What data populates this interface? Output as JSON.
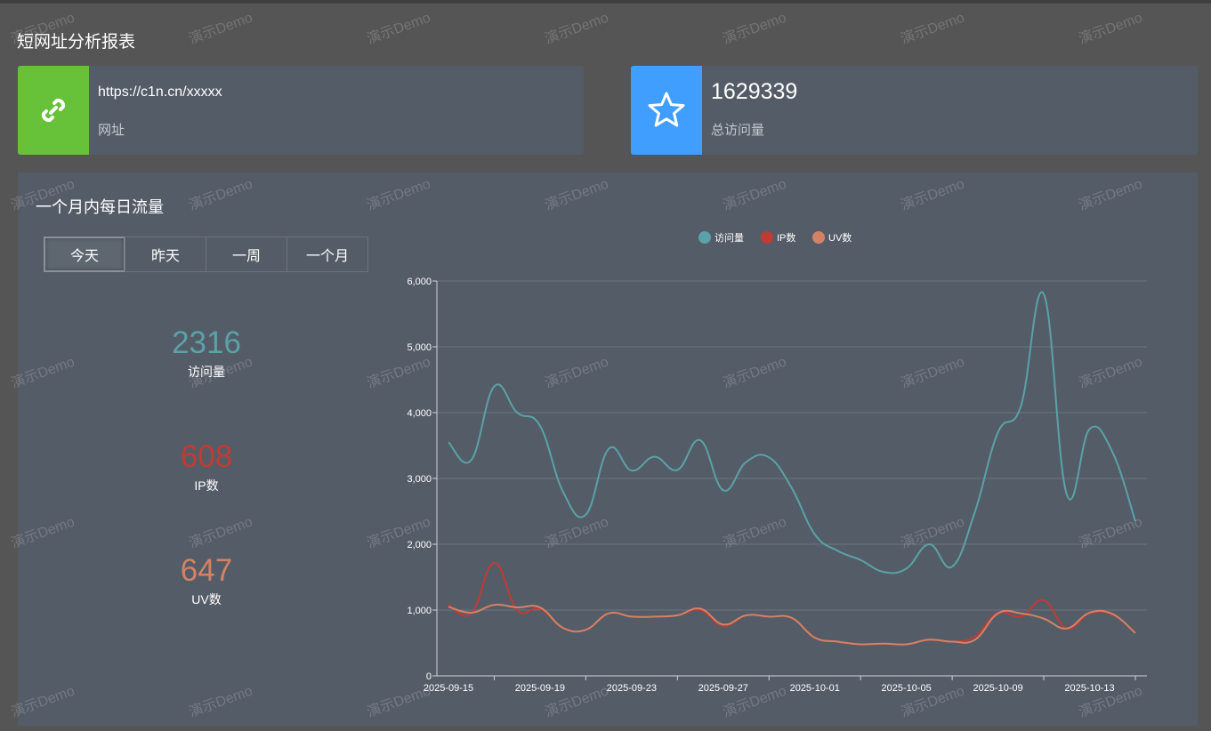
{
  "page": {
    "title": "短网址分析报表"
  },
  "url_card": {
    "value": "https://c1n.cn/xxxxx",
    "label": "网址",
    "icon": "link-icon",
    "color": "#67c23a"
  },
  "total_card": {
    "value": "1629339",
    "label": "总访问量",
    "icon": "star-icon",
    "color": "#409eff"
  },
  "panel": {
    "title": "一个月内每日流量",
    "buttons": [
      "今天",
      "昨天",
      "一周",
      "一个月"
    ],
    "active_button": "今天"
  },
  "stats": [
    {
      "value": "2316",
      "label": "访问量",
      "color": "#5aa2a8"
    },
    {
      "value": "608",
      "label": "IP数",
      "color": "#c13b35"
    },
    {
      "value": "647",
      "label": "UV数",
      "color": "#d48265"
    }
  ],
  "watermark_text": "演示Demo",
  "chart_data": {
    "type": "line",
    "title": "",
    "xlabel": "",
    "ylabel": "",
    "ylim": [
      0,
      6000
    ],
    "y_ticks": [
      "0",
      "1,000",
      "2,000",
      "3,000",
      "4,000",
      "5,000",
      "6,000"
    ],
    "y_tick_values": [
      0,
      1000,
      2000,
      3000,
      4000,
      5000,
      6000
    ],
    "x_tick_labels": [
      "2025-09-15",
      "2025-09-19",
      "2025-09-23",
      "2025-09-27",
      "2025-10-01",
      "2025-10-05",
      "2025-10-09",
      "2025-10-13"
    ],
    "x_tick_index": [
      0,
      4,
      8,
      12,
      16,
      20,
      24,
      28
    ],
    "x": [
      "2025-09-15",
      "2025-09-16",
      "2025-09-17",
      "2025-09-18",
      "2025-09-19",
      "2025-09-20",
      "2025-09-21",
      "2025-09-22",
      "2025-09-23",
      "2025-09-24",
      "2025-09-25",
      "2025-09-26",
      "2025-09-27",
      "2025-09-28",
      "2025-09-29",
      "2025-09-30",
      "2025-10-01",
      "2025-10-02",
      "2025-10-03",
      "2025-10-04",
      "2025-10-05",
      "2025-10-06",
      "2025-10-07",
      "2025-10-08",
      "2025-10-09",
      "2025-10-10",
      "2025-10-11",
      "2025-10-12",
      "2025-10-13",
      "2025-10-14",
      "2025-10-15"
    ],
    "legend": {
      "placement": "top-center"
    },
    "series": [
      {
        "name": "访问量",
        "color": "#5aa2a8",
        "values": [
          3550,
          3280,
          4400,
          4000,
          3800,
          2800,
          2450,
          3450,
          3120,
          3330,
          3130,
          3580,
          2820,
          3250,
          3320,
          2850,
          2150,
          1900,
          1760,
          1580,
          1630,
          2000,
          1660,
          2500,
          3700,
          4100,
          5800,
          2760,
          3750,
          3400,
          2350
        ]
      },
      {
        "name": "IP数",
        "color": "#c13b35",
        "values": [
          1080,
          950,
          1720,
          1000,
          1020,
          730,
          700,
          950,
          900,
          900,
          920,
          1000,
          760,
          920,
          900,
          880,
          580,
          520,
          480,
          490,
          480,
          550,
          520,
          600,
          960,
          900,
          1150,
          720,
          950,
          930,
          660
        ]
      },
      {
        "name": "UV数",
        "color": "#d48265",
        "values": [
          1050,
          960,
          1080,
          1040,
          1040,
          730,
          700,
          950,
          900,
          900,
          920,
          1020,
          780,
          920,
          900,
          880,
          580,
          520,
          480,
          490,
          480,
          550,
          520,
          550,
          950,
          950,
          870,
          720,
          960,
          940,
          650
        ]
      }
    ]
  }
}
